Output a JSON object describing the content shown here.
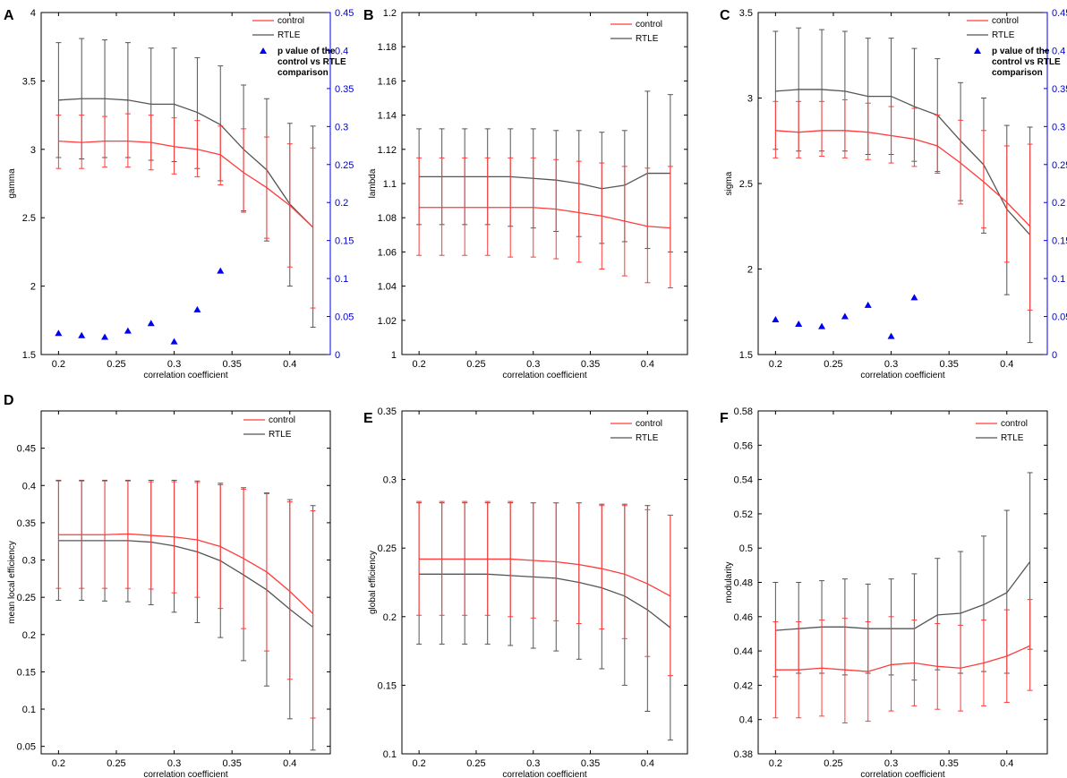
{
  "figure_title": "",
  "colors": {
    "control": "#ff3b3b",
    "rtle": "#555555",
    "pvalue": "#0000ee",
    "axis": "#000000"
  },
  "chart_data": [
    {
      "panel": "A",
      "type": "line",
      "xlabel": "correlation coefficient",
      "ylabel": "gamma",
      "xlim": [
        0.185,
        0.435
      ],
      "ylim": [
        1.5,
        4
      ],
      "xticks": [
        0.2,
        0.25,
        0.3,
        0.35,
        0.4
      ],
      "xtick_labels": [
        "0.2",
        "0.25",
        "0.3",
        "0.35",
        "0.4"
      ],
      "yticks": [
        1.5,
        2,
        2.5,
        3,
        3.5,
        4
      ],
      "ytick_labels": [
        "1.5",
        "2",
        "2.5",
        "3",
        "3.5",
        "4"
      ],
      "x": [
        0.2,
        0.22,
        0.24,
        0.26,
        0.28,
        0.3,
        0.32,
        0.34,
        0.36,
        0.38,
        0.4,
        0.42
      ],
      "series": [
        {
          "name": "control",
          "values": [
            3.06,
            3.05,
            3.06,
            3.06,
            3.05,
            3.02,
            3.0,
            2.96,
            2.83,
            2.72,
            2.59,
            2.43
          ],
          "lower": [
            2.86,
            2.86,
            2.87,
            2.87,
            2.85,
            2.82,
            2.8,
            2.74,
            2.54,
            2.35,
            2.14,
            1.84
          ],
          "upper": [
            3.25,
            3.25,
            3.24,
            3.26,
            3.25,
            3.23,
            3.21,
            3.17,
            3.15,
            3.09,
            3.04,
            3.01
          ]
        },
        {
          "name": "RTLE",
          "values": [
            3.36,
            3.37,
            3.37,
            3.36,
            3.33,
            3.33,
            3.27,
            3.18,
            3.0,
            2.85,
            2.6,
            2.43
          ],
          "lower": [
            2.94,
            2.93,
            2.94,
            2.94,
            2.92,
            2.91,
            2.86,
            2.77,
            2.55,
            2.33,
            2.0,
            1.7
          ],
          "upper": [
            3.78,
            3.81,
            3.8,
            3.78,
            3.74,
            3.74,
            3.67,
            3.61,
            3.47,
            3.37,
            3.19,
            3.17
          ]
        }
      ],
      "right_axis": {
        "ylim": [
          0,
          0.45
        ],
        "yticks": [
          0,
          0.05,
          0.1,
          0.15,
          0.2,
          0.25,
          0.3,
          0.35,
          0.4,
          0.45
        ],
        "ytick_labels": [
          "0",
          "0.05",
          "0.1",
          "0.15",
          "0.2",
          "0.25",
          "0.3",
          "0.35",
          "0.4",
          "0.45"
        ],
        "series": {
          "name": "p value of the control vs RTLE comparison",
          "marker": "triangle",
          "x": [
            0.2,
            0.22,
            0.24,
            0.26,
            0.28,
            0.3,
            0.32,
            0.34
          ],
          "values": [
            0.028,
            0.025,
            0.023,
            0.031,
            0.041,
            0.017,
            0.059,
            0.11
          ]
        }
      },
      "legend": {
        "entries": [
          "control",
          "RTLE"
        ],
        "marker_entry": [
          "p value of the",
          "control vs RTLE",
          "comparison"
        ]
      }
    },
    {
      "panel": "B",
      "type": "line",
      "xlabel": "correlation coefficient",
      "ylabel": "lambda",
      "xlim": [
        0.185,
        0.435
      ],
      "ylim": [
        1,
        1.2
      ],
      "xticks": [
        0.2,
        0.25,
        0.3,
        0.35,
        0.4
      ],
      "xtick_labels": [
        "0.2",
        "0.25",
        "0.3",
        "0.35",
        "0.4"
      ],
      "yticks": [
        1,
        1.02,
        1.04,
        1.06,
        1.08,
        1.1,
        1.12,
        1.14,
        1.16,
        1.18,
        1.2
      ],
      "ytick_labels": [
        "1",
        "1.02",
        "1.04",
        "1.06",
        "1.08",
        "1.1",
        "1.12",
        "1.14",
        "1.16",
        "1.18",
        "1.2"
      ],
      "x": [
        0.2,
        0.22,
        0.24,
        0.26,
        0.28,
        0.3,
        0.32,
        0.34,
        0.36,
        0.38,
        0.4,
        0.42
      ],
      "series": [
        {
          "name": "control",
          "values": [
            1.086,
            1.086,
            1.086,
            1.086,
            1.086,
            1.086,
            1.085,
            1.083,
            1.081,
            1.078,
            1.075,
            1.074
          ],
          "lower": [
            1.058,
            1.058,
            1.058,
            1.058,
            1.057,
            1.057,
            1.056,
            1.054,
            1.05,
            1.046,
            1.042,
            1.039
          ],
          "upper": [
            1.115,
            1.115,
            1.115,
            1.115,
            1.115,
            1.115,
            1.114,
            1.113,
            1.112,
            1.11,
            1.109,
            1.11
          ]
        },
        {
          "name": "RTLE",
          "values": [
            1.104,
            1.104,
            1.104,
            1.104,
            1.104,
            1.103,
            1.102,
            1.1,
            1.097,
            1.099,
            1.106,
            1.106
          ],
          "lower": [
            1.076,
            1.076,
            1.076,
            1.076,
            1.075,
            1.074,
            1.072,
            1.069,
            1.065,
            1.066,
            1.062,
            1.06
          ],
          "upper": [
            1.132,
            1.132,
            1.132,
            1.132,
            1.132,
            1.132,
            1.131,
            1.131,
            1.13,
            1.131,
            1.154,
            1.152
          ]
        }
      ],
      "legend": {
        "entries": [
          "control",
          "RTLE"
        ]
      }
    },
    {
      "panel": "C",
      "type": "line",
      "xlabel": "correlation coefficient",
      "ylabel": "sigma",
      "xlim": [
        0.185,
        0.435
      ],
      "ylim": [
        1.5,
        3.5
      ],
      "xticks": [
        0.2,
        0.25,
        0.3,
        0.35,
        0.4
      ],
      "xtick_labels": [
        "0.2",
        "0.25",
        "0.3",
        "0.35",
        "0.4"
      ],
      "yticks": [
        1.5,
        2,
        2.5,
        3,
        3.5
      ],
      "ytick_labels": [
        "1.5",
        "2",
        "2.5",
        "3",
        "3.5"
      ],
      "x": [
        0.2,
        0.22,
        0.24,
        0.26,
        0.28,
        0.3,
        0.32,
        0.34,
        0.36,
        0.38,
        0.4,
        0.42
      ],
      "series": [
        {
          "name": "control",
          "values": [
            2.81,
            2.8,
            2.81,
            2.81,
            2.8,
            2.78,
            2.76,
            2.72,
            2.62,
            2.51,
            2.39,
            2.25
          ],
          "lower": [
            2.65,
            2.65,
            2.66,
            2.65,
            2.64,
            2.62,
            2.6,
            2.56,
            2.38,
            2.24,
            2.04,
            1.76
          ],
          "upper": [
            2.98,
            2.98,
            2.98,
            2.99,
            2.97,
            2.95,
            2.94,
            2.9,
            2.87,
            2.81,
            2.72,
            2.73
          ]
        },
        {
          "name": "RTLE",
          "values": [
            3.04,
            3.05,
            3.05,
            3.04,
            3.01,
            3.01,
            2.95,
            2.9,
            2.75,
            2.61,
            2.35,
            2.2
          ],
          "lower": [
            2.7,
            2.69,
            2.69,
            2.69,
            2.67,
            2.67,
            2.63,
            2.57,
            2.4,
            2.21,
            1.85,
            1.57
          ],
          "upper": [
            3.39,
            3.41,
            3.4,
            3.39,
            3.35,
            3.35,
            3.29,
            3.23,
            3.09,
            3.0,
            2.84,
            2.83
          ]
        }
      ],
      "right_axis": {
        "ylim": [
          0,
          0.45
        ],
        "yticks": [
          0,
          0.05,
          0.1,
          0.15,
          0.2,
          0.25,
          0.3,
          0.35,
          0.4,
          0.45
        ],
        "ytick_labels": [
          "0",
          "0.05",
          "0.1",
          "0.15",
          "0.2",
          "0.25",
          "0.3",
          "0.35",
          "0.4",
          "0.45"
        ],
        "series": {
          "name": "p value of the control vs RTLE comparison",
          "marker": "triangle",
          "x": [
            0.2,
            0.22,
            0.24,
            0.26,
            0.28,
            0.3,
            0.32
          ],
          "values": [
            0.046,
            0.04,
            0.037,
            0.05,
            0.065,
            0.024,
            0.075
          ]
        }
      },
      "legend": {
        "entries": [
          "control",
          "RTLE"
        ],
        "marker_entry": [
          "p value of the",
          "control vs RTLE",
          "comparison"
        ]
      }
    },
    {
      "panel": "D",
      "type": "line",
      "xlabel": "correlation coefficient",
      "ylabel": "mean local efficiency",
      "xlim": [
        0.185,
        0.435
      ],
      "ylim": [
        0.04,
        0.5
      ],
      "xticks": [
        0.2,
        0.25,
        0.3,
        0.35,
        0.4
      ],
      "xtick_labels": [
        "0.2",
        "0.25",
        "0.3",
        "0.35",
        "0.4"
      ],
      "yticks": [
        0.05,
        0.1,
        0.15,
        0.2,
        0.25,
        0.3,
        0.35,
        0.4,
        0.45
      ],
      "ytick_labels": [
        "0.05",
        "0.1",
        "0.15",
        "0.2",
        "0.25",
        "0.3",
        "0.35",
        "0.4",
        "0.45"
      ],
      "x": [
        0.2,
        0.22,
        0.24,
        0.26,
        0.28,
        0.3,
        0.32,
        0.34,
        0.36,
        0.38,
        0.4,
        0.42
      ],
      "series": [
        {
          "name": "control",
          "values": [
            0.334,
            0.334,
            0.334,
            0.335,
            0.333,
            0.331,
            0.327,
            0.318,
            0.302,
            0.284,
            0.258,
            0.228
          ],
          "lower": [
            0.262,
            0.262,
            0.262,
            0.262,
            0.261,
            0.256,
            0.25,
            0.235,
            0.208,
            0.178,
            0.14,
            0.088
          ],
          "upper": [
            0.406,
            0.406,
            0.406,
            0.406,
            0.405,
            0.405,
            0.404,
            0.401,
            0.395,
            0.389,
            0.378,
            0.366
          ]
        },
        {
          "name": "RTLE",
          "values": [
            0.326,
            0.326,
            0.326,
            0.326,
            0.324,
            0.319,
            0.311,
            0.299,
            0.28,
            0.26,
            0.234,
            0.21
          ],
          "lower": [
            0.246,
            0.246,
            0.245,
            0.244,
            0.24,
            0.23,
            0.216,
            0.196,
            0.165,
            0.131,
            0.087,
            0.045
          ],
          "upper": [
            0.407,
            0.407,
            0.407,
            0.407,
            0.407,
            0.407,
            0.406,
            0.403,
            0.397,
            0.39,
            0.381,
            0.373
          ]
        }
      ],
      "legend": {
        "entries": [
          "control",
          "RTLE"
        ]
      }
    },
    {
      "panel": "E",
      "type": "line",
      "xlabel": "correlation coefficient",
      "ylabel": "global efficiency",
      "xlim": [
        0.185,
        0.435
      ],
      "ylim": [
        0.1,
        0.35
      ],
      "xticks": [
        0.2,
        0.25,
        0.3,
        0.35,
        0.4
      ],
      "xtick_labels": [
        "0.2",
        "0.25",
        "0.3",
        "0.35",
        "0.4"
      ],
      "yticks": [
        0.1,
        0.15,
        0.2,
        0.25,
        0.3,
        0.35
      ],
      "ytick_labels": [
        "0.1",
        "0.15",
        "0.2",
        "0.25",
        "0.3",
        "0.35"
      ],
      "x": [
        0.2,
        0.22,
        0.24,
        0.26,
        0.28,
        0.3,
        0.32,
        0.34,
        0.36,
        0.38,
        0.4,
        0.42
      ],
      "series": [
        {
          "name": "control",
          "values": [
            0.242,
            0.242,
            0.242,
            0.242,
            0.242,
            0.241,
            0.24,
            0.238,
            0.235,
            0.231,
            0.224,
            0.215
          ],
          "lower": [
            0.201,
            0.201,
            0.201,
            0.201,
            0.2,
            0.199,
            0.197,
            0.195,
            0.191,
            0.184,
            0.171,
            0.157
          ],
          "upper": [
            0.284,
            0.284,
            0.284,
            0.284,
            0.284,
            0.283,
            0.283,
            0.283,
            0.281,
            0.281,
            0.278,
            0.274
          ]
        },
        {
          "name": "RTLE",
          "values": [
            0.231,
            0.231,
            0.231,
            0.231,
            0.23,
            0.229,
            0.228,
            0.225,
            0.221,
            0.215,
            0.205,
            0.192
          ],
          "lower": [
            0.18,
            0.18,
            0.18,
            0.18,
            0.179,
            0.177,
            0.175,
            0.169,
            0.162,
            0.15,
            0.131,
            0.11
          ],
          "upper": [
            0.283,
            0.283,
            0.283,
            0.283,
            0.283,
            0.283,
            0.283,
            0.283,
            0.282,
            0.282,
            0.281,
            0.274
          ]
        }
      ],
      "legend": {
        "entries": [
          "control",
          "RTLE"
        ]
      }
    },
    {
      "panel": "F",
      "type": "line",
      "xlabel": "correlation coefficient",
      "ylabel": "modularity",
      "xlim": [
        0.185,
        0.435
      ],
      "ylim": [
        0.38,
        0.58
      ],
      "xticks": [
        0.2,
        0.25,
        0.3,
        0.35,
        0.4
      ],
      "xtick_labels": [
        "0.2",
        "0.25",
        "0.3",
        "0.35",
        "0.4"
      ],
      "yticks": [
        0.38,
        0.4,
        0.42,
        0.44,
        0.46,
        0.48,
        0.5,
        0.52,
        0.54,
        0.56,
        0.58
      ],
      "ytick_labels": [
        "0.38",
        "0.4",
        "0.42",
        "0.44",
        "0.46",
        "0.48",
        "0.5",
        "0.52",
        "0.54",
        "0.56",
        "0.58"
      ],
      "x": [
        0.2,
        0.22,
        0.24,
        0.26,
        0.28,
        0.3,
        0.32,
        0.34,
        0.36,
        0.38,
        0.4,
        0.42
      ],
      "series": [
        {
          "name": "control",
          "values": [
            0.429,
            0.429,
            0.43,
            0.429,
            0.428,
            0.432,
            0.433,
            0.431,
            0.43,
            0.433,
            0.437,
            0.443
          ],
          "lower": [
            0.401,
            0.401,
            0.402,
            0.398,
            0.399,
            0.405,
            0.408,
            0.406,
            0.405,
            0.408,
            0.41,
            0.417
          ],
          "upper": [
            0.457,
            0.457,
            0.458,
            0.459,
            0.457,
            0.46,
            0.458,
            0.456,
            0.455,
            0.458,
            0.464,
            0.47
          ]
        },
        {
          "name": "RTLE",
          "values": [
            0.452,
            0.453,
            0.454,
            0.454,
            0.453,
            0.453,
            0.453,
            0.461,
            0.462,
            0.467,
            0.474,
            0.492
          ],
          "lower": [
            0.425,
            0.427,
            0.427,
            0.426,
            0.427,
            0.426,
            0.423,
            0.429,
            0.427,
            0.428,
            0.427,
            0.441
          ],
          "upper": [
            0.48,
            0.48,
            0.481,
            0.482,
            0.479,
            0.482,
            0.485,
            0.494,
            0.498,
            0.507,
            0.522,
            0.544
          ]
        }
      ],
      "legend": {
        "entries": [
          "control",
          "RTLE"
        ]
      }
    }
  ]
}
